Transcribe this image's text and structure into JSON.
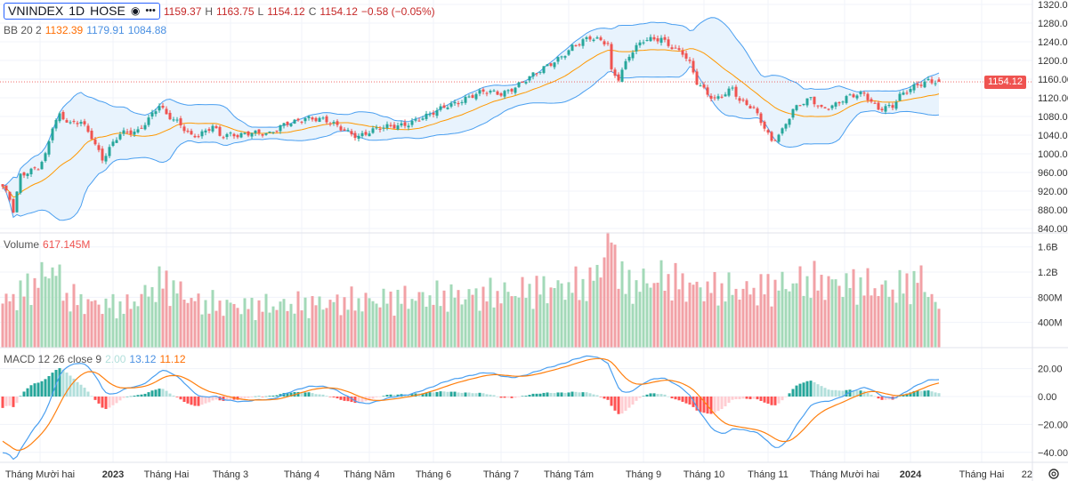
{
  "header": {
    "symbol": "VNINDEX",
    "interval": "1D",
    "exchange": "HOSE",
    "open": "1159.37",
    "high_label": "H",
    "high": "1163.75",
    "low_label": "L",
    "low": "1154.12",
    "close_label": "C",
    "close": "1154.12",
    "change": "−0.58 (−0.05%)"
  },
  "bb_legend": {
    "name": "BB 20 2",
    "basis": "1132.39",
    "upper": "1179.91",
    "lower": "1084.88"
  },
  "volume_legend": {
    "name": "Volume",
    "value": "617.145M"
  },
  "macd_legend": {
    "name": "MACD 12 26 close 9",
    "hist": "2.00",
    "macd": "13.12",
    "signal": "11.12"
  },
  "last_price_tag": "1154.12",
  "colors": {
    "up": "#26a69a",
    "down": "#ef5350",
    "vol_up": "#a3d9b8",
    "vol_down": "#f2a1a6",
    "bb_line": "#4a9ff0",
    "bb_fill": "#e8f3fd",
    "bb_basis": "#ff9800",
    "macd": "#4a9ff0",
    "signal": "#ff7f0e"
  },
  "chart_data": {
    "type": "candlestick",
    "title": "VNINDEX 1D HOSE",
    "price_axis": {
      "ylim": [
        840,
        1320
      ],
      "ticks": [
        "1320.00",
        "1280.00",
        "1240.00",
        "1200.00",
        "1160.00",
        "1120.00",
        "1080.00",
        "1040.00",
        "1000.00",
        "960.00",
        "920.00",
        "880.00",
        "840.00"
      ]
    },
    "volume_axis": {
      "ticks": [
        {
          "v": 1600,
          "label": "1.6B"
        },
        {
          "v": 1200,
          "label": "1.2B"
        },
        {
          "v": 800,
          "label": "800M"
        },
        {
          "v": 400,
          "label": "400M"
        }
      ]
    },
    "macd_axis": {
      "ticks": [
        {
          "v": 20,
          "label": "20.00"
        },
        {
          "v": 0,
          "label": "0.00"
        },
        {
          "v": -20,
          "label": "−20.00"
        },
        {
          "v": -40,
          "label": "−40.00"
        }
      ]
    },
    "bar_count": 264,
    "close_anchors": [
      [
        0,
        930
      ],
      [
        2,
        900
      ],
      [
        3,
        875
      ],
      [
        5,
        950
      ],
      [
        10,
        975
      ],
      [
        12,
        1000
      ],
      [
        14,
        1060
      ],
      [
        16,
        1080
      ],
      [
        19,
        1060
      ],
      [
        22,
        1070
      ],
      [
        25,
        1040
      ],
      [
        28,
        990
      ],
      [
        30,
        1010
      ],
      [
        33,
        1040
      ],
      [
        38,
        1050
      ],
      [
        40,
        1070
      ],
      [
        44,
        1105
      ],
      [
        46,
        1080
      ],
      [
        50,
        1060
      ],
      [
        53,
        1040
      ],
      [
        57,
        1050
      ],
      [
        59,
        1060
      ],
      [
        61,
        1035
      ],
      [
        66,
        1040
      ],
      [
        70,
        1050
      ],
      [
        75,
        1040
      ],
      [
        80,
        1065
      ],
      [
        85,
        1080
      ],
      [
        90,
        1070
      ],
      [
        95,
        1055
      ],
      [
        100,
        1040
      ],
      [
        105,
        1050
      ],
      [
        110,
        1060
      ],
      [
        115,
        1070
      ],
      [
        120,
        1080
      ],
      [
        123,
        1095
      ],
      [
        125,
        1105
      ],
      [
        130,
        1120
      ],
      [
        135,
        1130
      ],
      [
        140,
        1130
      ],
      [
        145,
        1150
      ],
      [
        150,
        1170
      ],
      [
        155,
        1200
      ],
      [
        160,
        1230
      ],
      [
        165,
        1245
      ],
      [
        170,
        1240
      ],
      [
        171,
        1180
      ],
      [
        173,
        1165
      ],
      [
        176,
        1210
      ],
      [
        180,
        1240
      ],
      [
        185,
        1250
      ],
      [
        189,
        1225
      ],
      [
        191,
        1215
      ],
      [
        193,
        1190
      ],
      [
        195,
        1150
      ],
      [
        198,
        1130
      ],
      [
        200,
        1120
      ],
      [
        205,
        1140
      ],
      [
        207,
        1110
      ],
      [
        211,
        1095
      ],
      [
        214,
        1060
      ],
      [
        216,
        1030
      ],
      [
        219,
        1050
      ],
      [
        222,
        1090
      ],
      [
        227,
        1120
      ],
      [
        230,
        1100
      ],
      [
        234,
        1105
      ],
      [
        238,
        1120
      ],
      [
        242,
        1130
      ],
      [
        246,
        1100
      ],
      [
        250,
        1100
      ],
      [
        252,
        1120
      ],
      [
        257,
        1150
      ],
      [
        260,
        1160
      ],
      [
        263,
        1154.12
      ]
    ],
    "volume_anchors_millions": [
      [
        0,
        700
      ],
      [
        6,
        900
      ],
      [
        10,
        1050
      ],
      [
        14,
        1300
      ],
      [
        18,
        800
      ],
      [
        25,
        700
      ],
      [
        35,
        650
      ],
      [
        45,
        1050
      ],
      [
        55,
        700
      ],
      [
        70,
        650
      ],
      [
        90,
        700
      ],
      [
        105,
        750
      ],
      [
        120,
        800
      ],
      [
        140,
        850
      ],
      [
        155,
        950
      ],
      [
        165,
        1000
      ],
      [
        171,
        1700
      ],
      [
        175,
        950
      ],
      [
        185,
        1100
      ],
      [
        195,
        950
      ],
      [
        210,
        900
      ],
      [
        225,
        1050
      ],
      [
        240,
        1000
      ],
      [
        250,
        900
      ],
      [
        258,
        1100
      ],
      [
        263,
        617
      ]
    ],
    "last_bar": {
      "open": 1159.37,
      "high": 1163.75,
      "low": 1154.12,
      "close": 1154.12,
      "volume_m": 617.145
    },
    "x_ticks": [
      {
        "i": 10.5,
        "label": "Tháng Mười hai"
      },
      {
        "i": 31,
        "label": "2023",
        "bold": true
      },
      {
        "i": 46,
        "label": "Tháng Hai"
      },
      {
        "i": 64,
        "label": "Tháng 3"
      },
      {
        "i": 84,
        "label": "Tháng 4"
      },
      {
        "i": 103,
        "label": "Tháng Năm"
      },
      {
        "i": 121,
        "label": "Tháng 6"
      },
      {
        "i": 140,
        "label": "Tháng 7"
      },
      {
        "i": 159,
        "label": "Tháng Tám"
      },
      {
        "i": 180,
        "label": "Tháng 9"
      },
      {
        "i": 197,
        "label": "Tháng 10"
      },
      {
        "i": 215,
        "label": "Tháng 11"
      },
      {
        "i": 236.5,
        "label": "Tháng Mười hai"
      },
      {
        "i": 255,
        "label": "2024",
        "bold": true
      },
      {
        "i": 275,
        "label": "Tháng Hai"
      },
      {
        "i": 290,
        "label": "22"
      }
    ]
  }
}
